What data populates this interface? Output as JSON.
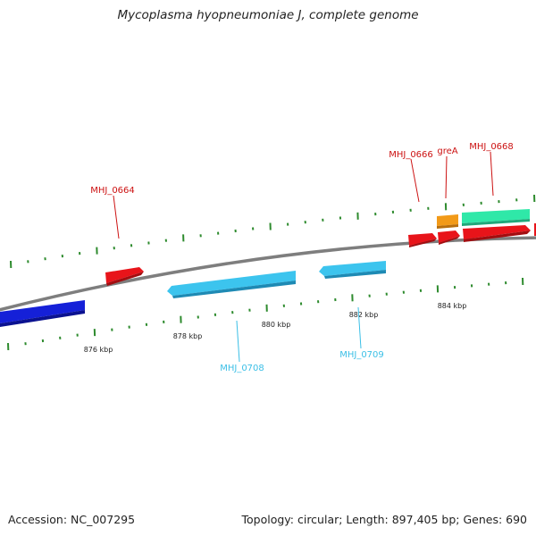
{
  "title": "Mycoplasma hyopneumoniae J, complete genome",
  "footer": {
    "accession": "Accession: NC_007295",
    "summary": "Topology: circular; Length: 897,405 bp; Genes: 690"
  },
  "colors": {
    "backbone": "#8a8a8a",
    "tick": "#2e8b2e",
    "forward_cds": "#e8141a",
    "reverse_cds": "#3cc4ee",
    "reverse_dark": "#1520d8",
    "rna": "#f29a18",
    "other": "#2fe8a8",
    "forward_label": "#cc1111",
    "reverse_label": "#3bbfe6"
  },
  "ticks": {
    "outer_count": 31,
    "inner_count": 31,
    "labels": [
      "876 kbp",
      "878 kbp",
      "880 kbp",
      "882 kbp",
      "884 kbp"
    ]
  },
  "gene_labels": {
    "forward": [
      "MHJ_0664",
      "MHJ_0666",
      "greA",
      "MHJ_0668"
    ],
    "reverse": [
      "MHJ_0708",
      "MHJ_0709"
    ]
  }
}
